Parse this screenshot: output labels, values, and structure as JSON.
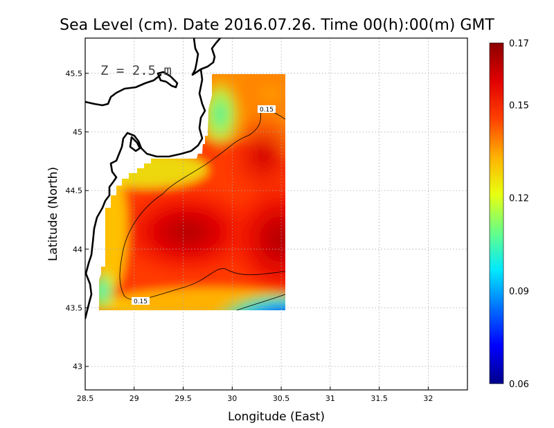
{
  "chart_data": {
    "type": "heatmap",
    "title": "Sea Level (cm). Date 2016.07.26. Time 00(h):00(m) GMT",
    "xlabel": "Longitude (East)",
    "ylabel": "Latitude (North)",
    "annotation": "Z = 2.5 m",
    "xlim": [
      28.5,
      32.4
    ],
    "ylim": [
      42.8,
      45.8
    ],
    "xticks": [
      {
        "value": 28.5,
        "label": "28.5"
      },
      {
        "value": 29,
        "label": "29"
      },
      {
        "value": 29.5,
        "label": "29.5"
      },
      {
        "value": 30,
        "label": "30"
      },
      {
        "value": 30.5,
        "label": "30.5"
      },
      {
        "value": 31,
        "label": "31"
      },
      {
        "value": 31.5,
        "label": "31.5"
      },
      {
        "value": 32,
        "label": "32"
      }
    ],
    "yticks": [
      {
        "value": 43,
        "label": "43"
      },
      {
        "value": 43.5,
        "label": "43.5"
      },
      {
        "value": 44,
        "label": "44"
      },
      {
        "value": 44.5,
        "label": "44.5"
      },
      {
        "value": 45,
        "label": "45"
      },
      {
        "value": 45.5,
        "label": "45.5"
      }
    ],
    "grid": true,
    "colorbar": {
      "min": 0.06,
      "max": 0.17,
      "ticks": [
        {
          "value": 0.06,
          "label": "0.06"
        },
        {
          "value": 0.09,
          "label": "0.09"
        },
        {
          "value": 0.12,
          "label": "0.12"
        },
        {
          "value": 0.15,
          "label": "0.15"
        },
        {
          "value": 0.17,
          "label": "0.17"
        }
      ],
      "colors": [
        "#00008b",
        "#0000ff",
        "#0070ff",
        "#00e8ff",
        "#66ff88",
        "#e8ff10",
        "#ffb000",
        "#ff4000",
        "#e00000",
        "#8b0000"
      ]
    },
    "data_extent": {
      "lon": [
        28.6,
        30.55
      ],
      "lat": [
        43.48,
        45.5
      ]
    },
    "field_features": [
      {
        "lon": 29.6,
        "lat": 44.1,
        "value": 0.168,
        "note": "western maximum"
      },
      {
        "lon": 30.5,
        "lat": 44.05,
        "value": 0.168,
        "note": "eastern maximum"
      },
      {
        "lon": 30.3,
        "lat": 44.75,
        "value": 0.163,
        "note": "northern high"
      },
      {
        "lon": 30.1,
        "lat": 45.15,
        "value": 0.12,
        "note": "coastal low"
      },
      {
        "lon": 28.8,
        "lat": 43.7,
        "value": 0.125,
        "note": "southwestern low"
      },
      {
        "lon": 30.5,
        "lat": 43.5,
        "value": 0.08,
        "note": "southeastern minimum"
      }
    ],
    "contours": [
      {
        "level": 0.15,
        "label": "0.15"
      }
    ]
  }
}
